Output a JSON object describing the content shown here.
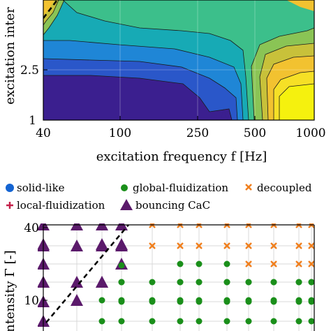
{
  "chart_data": [
    {
      "type": "heatmap",
      "title": "",
      "xlabel": "excitation frequency f [Hz]",
      "ylabel": "excitation inter",
      "x_scale": "log",
      "x_ticks": [
        "40",
        "100",
        "250",
        "500",
        "1000"
      ],
      "x_tick_values": [
        40,
        100,
        250,
        500,
        1000
      ],
      "xlim": [
        40,
        1000
      ],
      "y_ticks": [
        "1",
        "2.5"
      ],
      "y_tick_values": [
        1,
        2.5
      ],
      "ylim": [
        1,
        10
      ],
      "grid": true,
      "colormap": [
        "#3b1f8f",
        "#2a57c9",
        "#1f86d6",
        "#17aab5",
        "#3cbf8b",
        "#8ac455",
        "#c8c13a",
        "#f2c230",
        "#f6e026",
        "#f5f10e"
      ],
      "dashed_line": {
        "x": [
          40,
          48
        ],
        "y": [
          8.6,
          10
        ]
      }
    },
    {
      "type": "scatter",
      "title": "",
      "xlabel": "",
      "ylabel": "intensity Γ [-]",
      "y_ticks": [
        "10",
        "40"
      ],
      "y_tick_values": [
        10,
        40
      ],
      "grid": true,
      "legend": {
        "placement": "top",
        "entries": [
          {
            "label": "solid-like",
            "marker": "circle",
            "color": "#1464d2"
          },
          {
            "label": "global-fluidization",
            "marker": "circle",
            "color": "#1a8f1a"
          },
          {
            "label": "decoupled",
            "marker": "x",
            "color": "#f07f1e"
          },
          {
            "label": "local-fluidization",
            "marker": "plus",
            "color": "#c4204a"
          },
          {
            "label": "bouncing CaC",
            "marker": "triangle",
            "color": "#5b1a6b"
          }
        ]
      },
      "series": [
        {
          "name": "bouncing CaC",
          "points": [
            [
              40,
              40
            ],
            [
              40,
              35
            ],
            [
              40,
              30
            ],
            [
              40,
              25
            ],
            [
              40,
              20
            ],
            [
              40,
              15
            ],
            [
              40,
              10
            ],
            [
              40,
              7
            ],
            [
              60,
              40
            ],
            [
              60,
              30
            ],
            [
              60,
              20
            ],
            [
              60,
              12
            ],
            [
              80,
              40
            ],
            [
              80,
              35
            ],
            [
              80,
              30
            ],
            [
              80,
              20
            ],
            [
              80,
              15
            ],
            [
              100,
              40
            ],
            [
              100,
              35
            ],
            [
              100,
              30
            ],
            [
              100,
              25
            ]
          ]
        },
        {
          "name": "global-fluidization",
          "points": [
            [
              80,
              12
            ],
            [
              80,
              7
            ],
            [
              100,
              22
            ],
            [
              100,
              20
            ],
            [
              100,
              15
            ],
            [
              100,
              12
            ],
            [
              100,
              10
            ],
            [
              100,
              7
            ],
            [
              150,
              20
            ],
            [
              150,
              12
            ],
            [
              150,
              10
            ],
            [
              150,
              7
            ],
            [
              200,
              25
            ],
            [
              200,
              20
            ],
            [
              200,
              15
            ],
            [
              200,
              12
            ],
            [
              200,
              10
            ],
            [
              200,
              7
            ],
            [
              250,
              25
            ],
            [
              250,
              20
            ],
            [
              250,
              15
            ],
            [
              250,
              12
            ],
            [
              250,
              10
            ],
            [
              250,
              7
            ],
            [
              350,
              25
            ],
            [
              350,
              20
            ],
            [
              350,
              15
            ],
            [
              350,
              12
            ],
            [
              350,
              10
            ],
            [
              350,
              7
            ],
            [
              450,
              20
            ],
            [
              450,
              15
            ],
            [
              450,
              12
            ],
            [
              450,
              10
            ],
            [
              450,
              7
            ],
            [
              600,
              20
            ],
            [
              600,
              15
            ],
            [
              600,
              12
            ],
            [
              600,
              10
            ],
            [
              600,
              7
            ],
            [
              800,
              20
            ],
            [
              800,
              15
            ],
            [
              800,
              12
            ],
            [
              800,
              10
            ],
            [
              800,
              7
            ],
            [
              1000,
              20
            ],
            [
              1000,
              15
            ],
            [
              1000,
              12
            ],
            [
              1000,
              10
            ],
            [
              1000,
              7
            ]
          ]
        },
        {
          "name": "decoupled",
          "points": [
            [
              150,
              40
            ],
            [
              150,
              30
            ],
            [
              200,
              40
            ],
            [
              200,
              30
            ],
            [
              250,
              40
            ],
            [
              250,
              30
            ],
            [
              350,
              40
            ],
            [
              350,
              30
            ],
            [
              450,
              40
            ],
            [
              450,
              30
            ],
            [
              450,
              25
            ],
            [
              600,
              40
            ],
            [
              600,
              30
            ],
            [
              600,
              25
            ],
            [
              800,
              40
            ],
            [
              800,
              30
            ],
            [
              800,
              25
            ],
            [
              1000,
              40
            ],
            [
              1000,
              30
            ],
            [
              1000,
              25
            ]
          ]
        }
      ],
      "dashed_line": {
        "x": [
          40,
          120
        ],
        "y": [
          7,
          40
        ]
      }
    }
  ]
}
